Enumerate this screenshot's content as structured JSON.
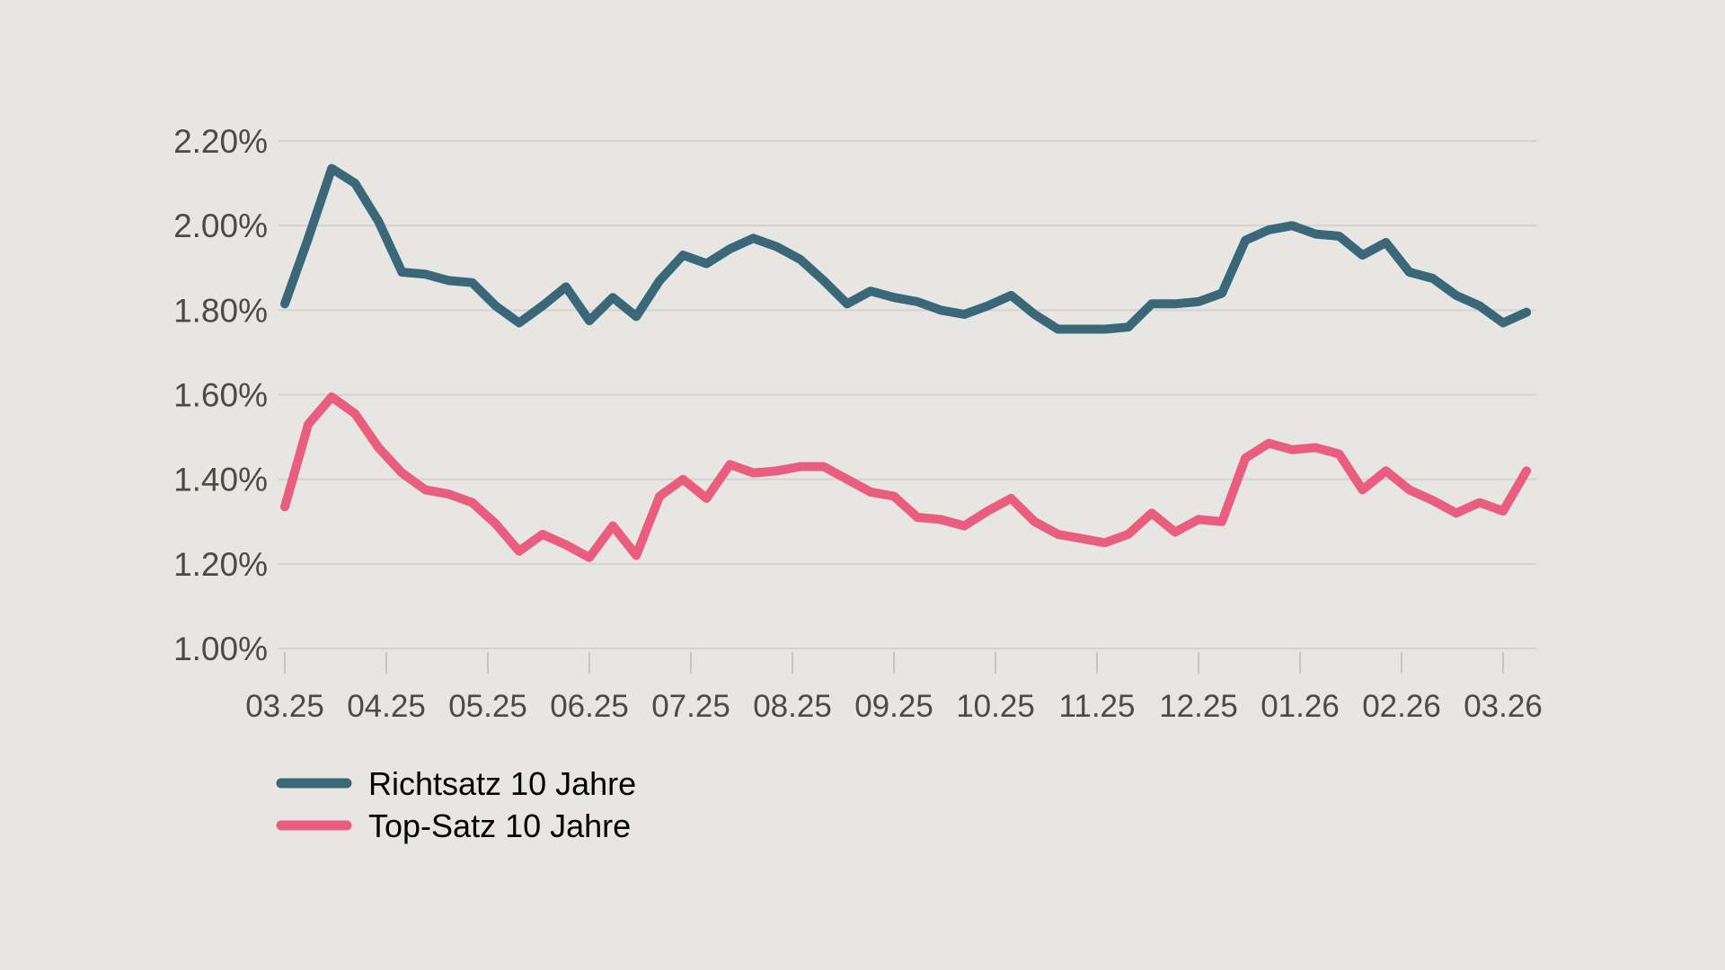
{
  "colors": {
    "background": "#e7e6e3",
    "grid": "#d3d2ce",
    "tick": "#c6c5c1",
    "text": "#4b4a45",
    "richtsatz": "#3a6879",
    "topsatz": "#e95d7e"
  },
  "legend": {
    "items": [
      {
        "label": "Richtsatz 10 Jahre",
        "color": "#3a6879"
      },
      {
        "label": "Top-Satz 10 Jahre",
        "color": "#e95d7e"
      }
    ]
  },
  "chart_data": {
    "type": "line",
    "title": "",
    "xlabel": "",
    "ylabel": "",
    "grid": "horizontal",
    "legend_position": "bottom-left",
    "x_unit": "weekly data points, monthly ticks",
    "x_tick_labels": [
      "03.25",
      "04.25",
      "05.25",
      "06.25",
      "07.25",
      "08.25",
      "09.25",
      "10.25",
      "11.25",
      "12.25",
      "01.26",
      "02.26",
      "03.26"
    ],
    "points_per_month_interval": 4.3333,
    "ylim": [
      1.0,
      2.2
    ],
    "y_ticks": [
      2.2,
      2.0,
      1.8,
      1.6,
      1.4,
      1.2,
      1.0
    ],
    "y_tick_labels": [
      "2.20%",
      "2.00%",
      "1.80%",
      "1.60%",
      "1.40%",
      "1.20%",
      "1.00%"
    ],
    "series": [
      {
        "name": "Richtsatz 10 Jahre",
        "color": "#3a6879",
        "values": [
          1.815,
          1.97,
          2.135,
          2.1,
          2.01,
          1.89,
          1.885,
          1.87,
          1.865,
          1.81,
          1.77,
          1.81,
          1.855,
          1.775,
          1.83,
          1.785,
          1.87,
          1.93,
          1.91,
          1.945,
          1.97,
          1.95,
          1.92,
          1.87,
          1.815,
          1.845,
          1.83,
          1.82,
          1.8,
          1.79,
          1.81,
          1.835,
          1.79,
          1.755,
          1.755,
          1.755,
          1.76,
          1.815,
          1.815,
          1.82,
          1.84,
          1.965,
          1.99,
          2.0,
          1.98,
          1.975,
          1.93,
          1.96,
          1.89,
          1.875,
          1.835,
          1.81,
          1.77,
          1.795
        ]
      },
      {
        "name": "Top-Satz 10 Jahre",
        "color": "#e95d7e",
        "values": [
          1.335,
          1.53,
          1.595,
          1.555,
          1.475,
          1.415,
          1.375,
          1.365,
          1.345,
          1.295,
          1.23,
          1.27,
          1.245,
          1.215,
          1.29,
          1.22,
          1.36,
          1.4,
          1.355,
          1.435,
          1.415,
          1.42,
          1.43,
          1.43,
          1.4,
          1.37,
          1.36,
          1.31,
          1.305,
          1.29,
          1.325,
          1.355,
          1.3,
          1.27,
          1.26,
          1.25,
          1.27,
          1.32,
          1.275,
          1.305,
          1.3,
          1.45,
          1.485,
          1.47,
          1.475,
          1.46,
          1.375,
          1.42,
          1.375,
          1.35,
          1.32,
          1.345,
          1.325,
          1.42
        ]
      }
    ]
  }
}
